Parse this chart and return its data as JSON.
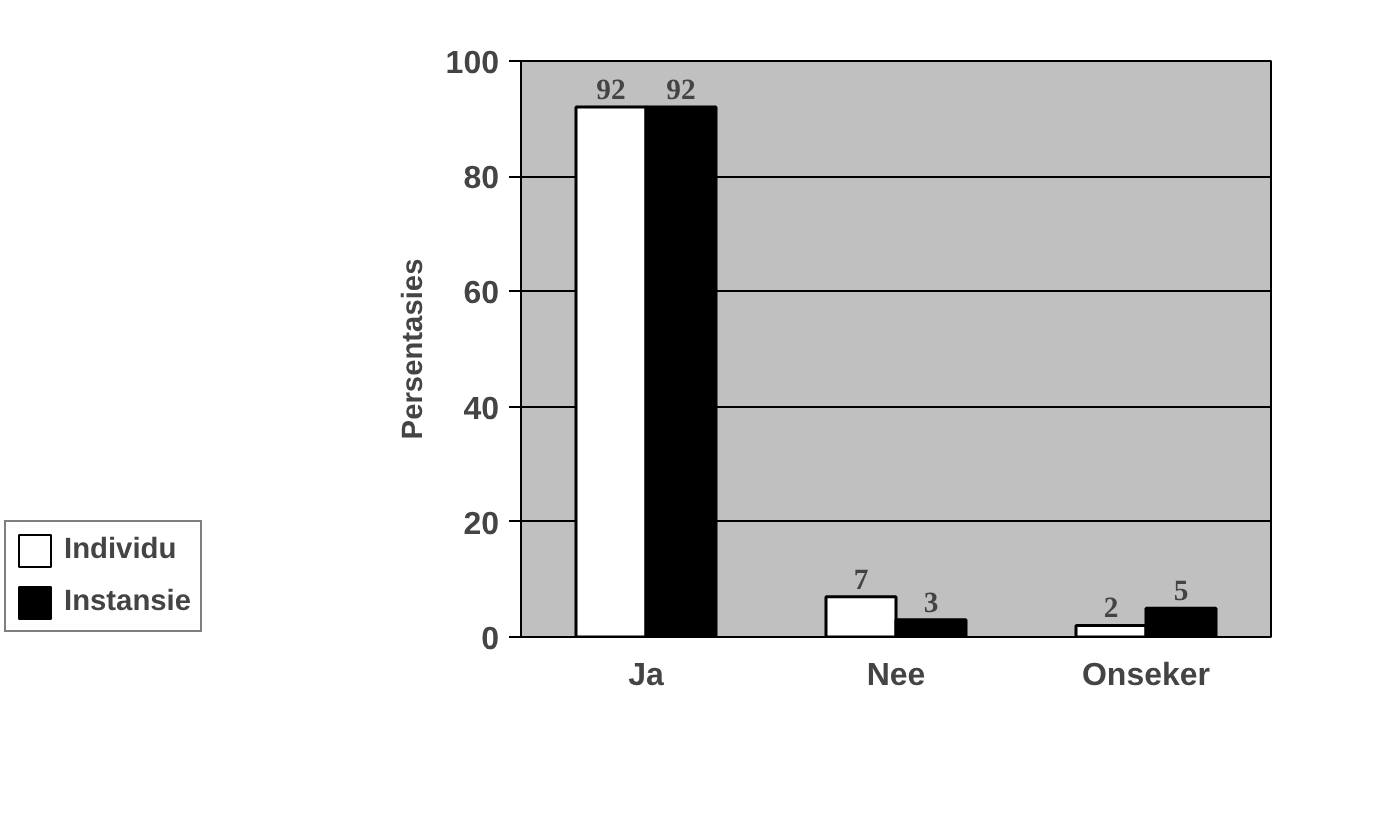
{
  "chart_data": {
    "type": "bar",
    "ylabel": "Persentasies",
    "categories": [
      "Ja",
      "Nee",
      "Onseker"
    ],
    "series": [
      {
        "name": "Individu",
        "color": "#ffffff",
        "values": [
          92,
          7,
          2
        ]
      },
      {
        "name": "Instansie",
        "color": "#000000",
        "values": [
          92,
          3,
          5
        ]
      }
    ],
    "ylim": [
      0,
      100
    ],
    "yticks": [
      0,
      20,
      40,
      60,
      80,
      100
    ],
    "grid": "y",
    "legend": "bottom left",
    "data_labels": true
  }
}
